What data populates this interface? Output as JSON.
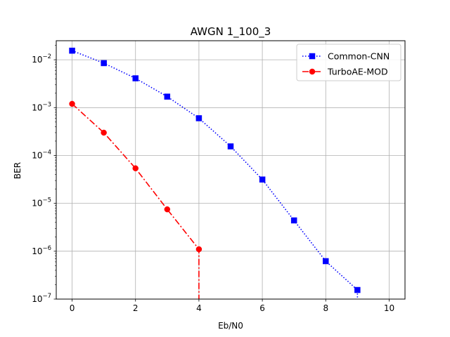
{
  "chart_data": {
    "type": "line",
    "title": "AWGN 1_100_3",
    "xlabel": "Eb/N0",
    "ylabel": "BER",
    "xlim": [
      -0.5,
      10.5
    ],
    "ylim": [
      1e-07,
      0.025
    ],
    "yscale": "log",
    "grid": true,
    "legend_position": "top-right",
    "x_ticks": [
      0,
      2,
      4,
      6,
      8,
      10
    ],
    "y_ticks": [
      {
        "value": 1e-07,
        "mantissa": "10",
        "exponent": "−7"
      },
      {
        "value": 1e-06,
        "mantissa": "10",
        "exponent": "−6"
      },
      {
        "value": 1e-05,
        "mantissa": "10",
        "exponent": "−5"
      },
      {
        "value": 0.0001,
        "mantissa": "10",
        "exponent": "−4"
      },
      {
        "value": 0.001,
        "mantissa": "10",
        "exponent": "−3"
      },
      {
        "value": 0.01,
        "mantissa": "10",
        "exponent": "−2"
      }
    ],
    "series": [
      {
        "name": "Common-CNN",
        "color": "#0000ff",
        "marker": "square",
        "linestyle": "dotted",
        "x": [
          0,
          1,
          2,
          3,
          4,
          5,
          6,
          7,
          8,
          9
        ],
        "y": [
          0.0155,
          0.0085,
          0.0041,
          0.0017,
          0.0006,
          0.000155,
          3.15e-05,
          4.4e-06,
          6.2e-07,
          1.55e-07
        ],
        "tail_to": {
          "x": 9,
          "y": 5e-08
        }
      },
      {
        "name": "TurboAE-MOD",
        "color": "#ff0000",
        "marker": "circle",
        "linestyle": "dashdot",
        "x": [
          0,
          1,
          2,
          3,
          4
        ],
        "y": [
          0.0012,
          0.0003,
          5.4e-05,
          7.5e-06,
          1.1e-06
        ],
        "tail_to": {
          "x": 4,
          "y": 5e-08
        }
      }
    ]
  }
}
